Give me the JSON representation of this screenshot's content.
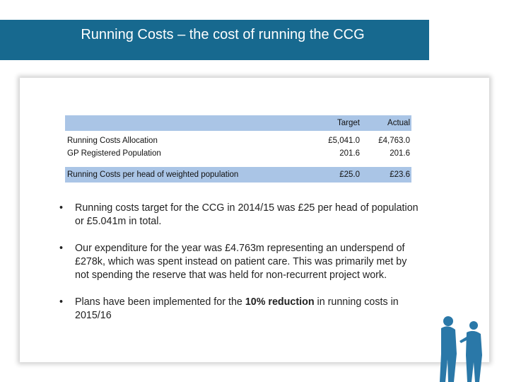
{
  "header": {
    "title": "Running Costs – the cost of running the CCG"
  },
  "table": {
    "columns": [
      "Target",
      "Actual"
    ],
    "rows": [
      {
        "label": "Running Costs Allocation",
        "values": [
          "£5,041.0",
          "£4,763.0"
        ]
      },
      {
        "label": "GP Registered Population",
        "values": [
          "201.6",
          "201.6"
        ]
      },
      {
        "label": "Running Costs per head of weighted population",
        "values": [
          "£25.0",
          "£23.6"
        ]
      }
    ]
  },
  "bullets": [
    {
      "marker": "•",
      "parts": [
        "Running costs target for the CCG in 2014/15 was £25 per head of population or £5.041m in total."
      ]
    },
    {
      "marker": "•",
      "parts": [
        "Our expenditure for the year was £4.763m representing an underspend of £278k, which was spent instead on patient care. This was primarily met by not spending the reserve that was held for non-recurrent project work."
      ]
    },
    {
      "marker": "•",
      "parts": [
        "Plans have been implemented for the ",
        "10% reduction",
        " in running costs in 2015/16"
      ]
    }
  ]
}
